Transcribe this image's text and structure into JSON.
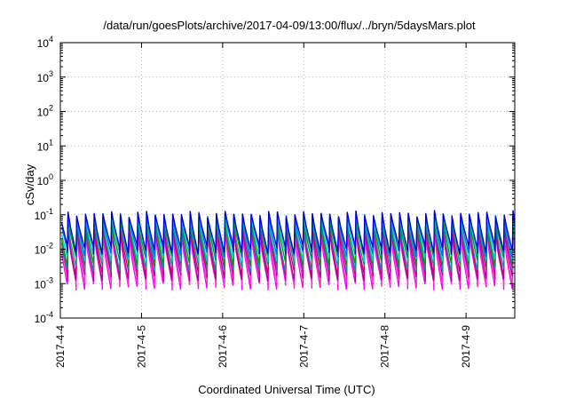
{
  "chart_data": {
    "type": "line",
    "title": "/data/run/goesPlots/archive/2017-04-09/13:00/flux/../bryn/5daysMars.plot",
    "xlabel": "Coordinated Universal Time (UTC)",
    "ylabel": "cSv/day",
    "y_scale": "log",
    "ylim": [
      0.0001,
      10000
    ],
    "xlim_days_from_start": [
      0,
      5.6
    ],
    "grid": true,
    "legend": "none",
    "x_ticks": [
      {
        "label": "2017-4-4",
        "day": 0
      },
      {
        "label": "2017-4-5",
        "day": 1
      },
      {
        "label": "2017-4-6",
        "day": 2
      },
      {
        "label": "2017-4-7",
        "day": 3
      },
      {
        "label": "2017-4-8",
        "day": 4
      },
      {
        "label": "2017-4-9",
        "day": 5
      }
    ],
    "y_ticks": [
      {
        "base": "10",
        "exp": "-4",
        "value": 0.0001
      },
      {
        "base": "10",
        "exp": "-3",
        "value": 0.001
      },
      {
        "base": "10",
        "exp": "-2",
        "value": 0.01
      },
      {
        "base": "10",
        "exp": "-1",
        "value": 0.1
      },
      {
        "base": "10",
        "exp": "0",
        "value": 1
      },
      {
        "base": "10",
        "exp": "1",
        "value": 10
      },
      {
        "base": "10",
        "exp": "2",
        "value": 100
      },
      {
        "base": "10",
        "exp": "3",
        "value": 1000
      },
      {
        "base": "10",
        "exp": "4",
        "value": 10000
      }
    ],
    "pattern": {
      "cycles_per_day": 9.3,
      "description": "sawtooth dose-rate series, each cycle peaking then decaying"
    },
    "series": [
      {
        "color": "#ff00ff",
        "peak": 0.028,
        "trough": 0.0009
      },
      {
        "color": "#ff33cc",
        "peak": 0.035,
        "trough": 0.0012
      },
      {
        "color": "#aa00aa",
        "peak": 0.04,
        "trough": 0.0016
      },
      {
        "color": "#cc0066",
        "peak": 0.05,
        "trough": 0.0022
      },
      {
        "color": "#009999",
        "peak": 0.06,
        "trough": 0.003
      },
      {
        "color": "#009900",
        "peak": 0.075,
        "trough": 0.0045
      },
      {
        "color": "#00cccc",
        "peak": 0.085,
        "trough": 0.006
      },
      {
        "color": "#0066ff",
        "peak": 0.1,
        "trough": 0.008
      },
      {
        "color": "#0000cc",
        "peak": 0.11,
        "trough": 0.01
      }
    ]
  }
}
